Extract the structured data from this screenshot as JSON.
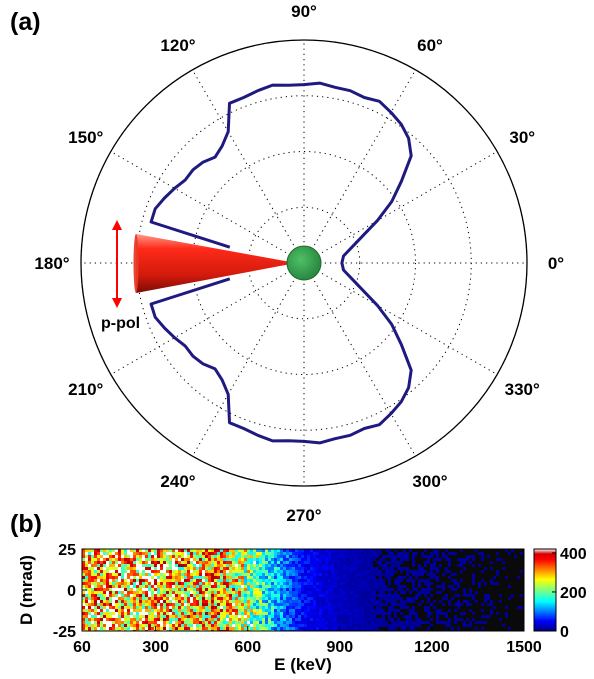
{
  "panel_labels": [
    "(a)",
    "(b)"
  ],
  "colors": {
    "curve": "#1f1a80",
    "cone": "#e52b1c",
    "arrow": "#ff0000",
    "target": "#2f9b45",
    "grid": "#000000"
  },
  "chart_data": [
    {
      "type": "polar-line",
      "panel": "(a)",
      "angle_ticks_deg": [
        0,
        30,
        60,
        90,
        120,
        150,
        180,
        210,
        240,
        270,
        300,
        330
      ],
      "angle_tick_labels": [
        "0°",
        "30°",
        "60°",
        "90°",
        "120°",
        "150°",
        "180°",
        "210°",
        "240°",
        "270°",
        "300°",
        "330°"
      ],
      "radial_gridlines": 4,
      "radial_range": [
        0,
        1
      ],
      "annotation": "p-pol",
      "series": [
        {
          "theta_deg": [
            0,
            10,
            20,
            30,
            35,
            40,
            45,
            50,
            55,
            60,
            65,
            70,
            75,
            80,
            85,
            90,
            95,
            100,
            105,
            110,
            115,
            120,
            125,
            130,
            135,
            140,
            145,
            150,
            155,
            160,
            165,
            168
          ],
          "r": [
            0.17,
            0.18,
            0.24,
            0.38,
            0.48,
            0.57,
            0.68,
            0.73,
            0.76,
            0.78,
            0.8,
            0.79,
            0.8,
            0.8,
            0.81,
            0.8,
            0.8,
            0.81,
            0.8,
            0.79,
            0.79,
            0.68,
            0.64,
            0.62,
            0.64,
            0.65,
            0.65,
            0.67,
            0.69,
            0.71,
            0.71,
            0.34
          ],
          "symmetry": "mirrored about 0°"
        }
      ]
    },
    {
      "type": "heatmap",
      "panel": "(b)",
      "xlabel": "E (keV)",
      "ylabel": "D (mrad)",
      "x_ticks": [
        60,
        300,
        600,
        900,
        1200,
        1500
      ],
      "y_ticks": [
        25,
        0,
        -25
      ],
      "xlim": [
        60,
        1500
      ],
      "ylim": [
        -25,
        25
      ],
      "colorbar_ticks": [
        0,
        200,
        400
      ],
      "colorbar_range": [
        0,
        420
      ],
      "energy_keV": [
        60,
        150,
        300,
        450,
        550,
        620,
        700,
        780,
        900,
        1050,
        1200,
        1350,
        1500
      ],
      "mean_intensity": [
        300,
        310,
        300,
        285,
        270,
        210,
        120,
        55,
        25,
        10,
        8,
        7,
        6
      ]
    }
  ]
}
